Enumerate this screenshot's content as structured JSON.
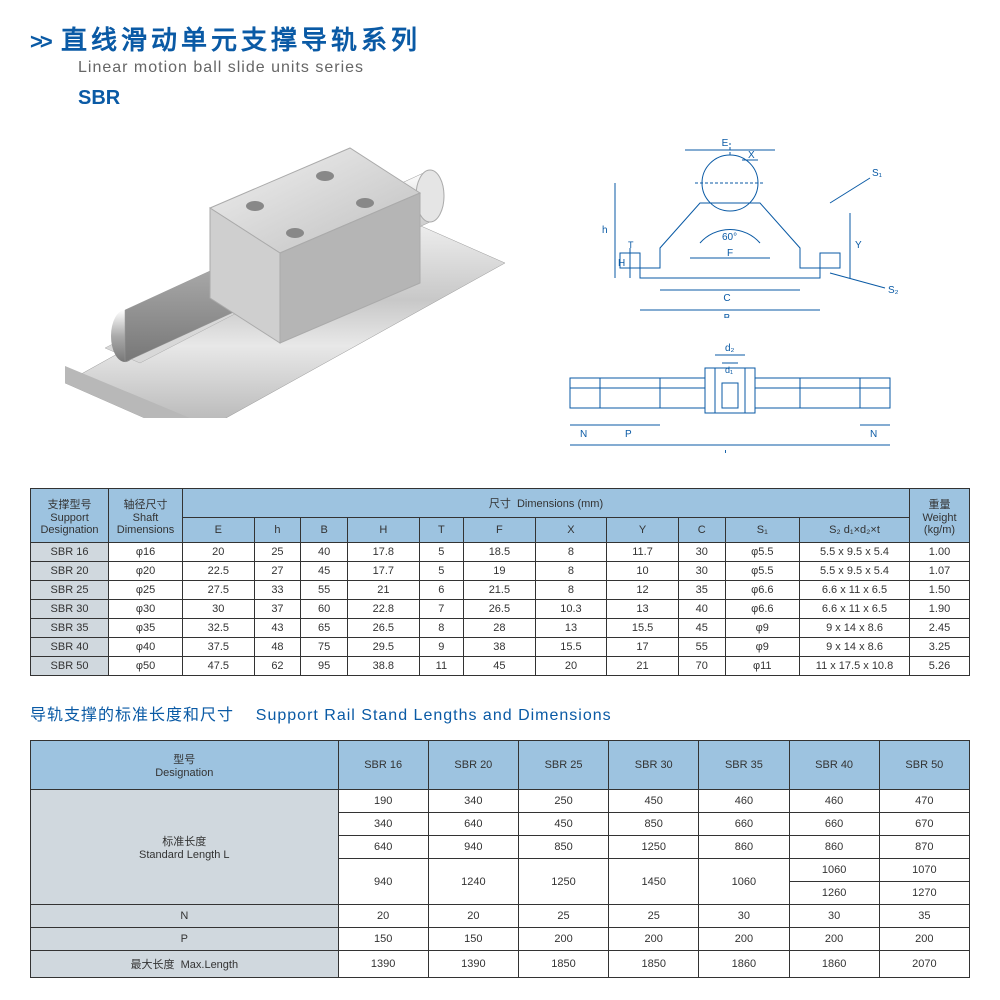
{
  "header": {
    "chevrons": ">>",
    "title_cn": "直线滑动单元支撑导轨系列",
    "title_en": "Linear motion ball slide units series",
    "series": "SBR"
  },
  "diagram1_labels": [
    "E",
    "X",
    "S₁",
    "h",
    "H",
    "T",
    "Y",
    "60°",
    "F",
    "C",
    "S₂",
    "B"
  ],
  "diagram2_labels": [
    "d₂",
    "d₁",
    "N",
    "P",
    "N",
    "L"
  ],
  "dim_table": {
    "headers": {
      "support_cn": "支撑型号",
      "support_en": "Support Designation",
      "shaft_cn": "轴径尺寸",
      "shaft_en": "Shaft Dimensions",
      "dims_cn": "尺寸",
      "dims_en": "Dimensions (mm)",
      "weight_cn": "重量",
      "weight_en": "Weight (kg/m)",
      "cols": [
        "E",
        "h",
        "B",
        "H",
        "T",
        "F",
        "X",
        "Y",
        "C",
        "S₁",
        "S₂ d₁×d₂×t"
      ]
    },
    "rows": [
      [
        "SBR 16",
        "φ16",
        "20",
        "25",
        "40",
        "17.8",
        "5",
        "18.5",
        "8",
        "11.7",
        "30",
        "φ5.5",
        "5.5 x 9.5 x 5.4",
        "1.00"
      ],
      [
        "SBR 20",
        "φ20",
        "22.5",
        "27",
        "45",
        "17.7",
        "5",
        "19",
        "8",
        "10",
        "30",
        "φ5.5",
        "5.5 x 9.5 x 5.4",
        "1.07"
      ],
      [
        "SBR 25",
        "φ25",
        "27.5",
        "33",
        "55",
        "21",
        "6",
        "21.5",
        "8",
        "12",
        "35",
        "φ6.6",
        "6.6 x 11 x 6.5",
        "1.50"
      ],
      [
        "SBR 30",
        "φ30",
        "30",
        "37",
        "60",
        "22.8",
        "7",
        "26.5",
        "10.3",
        "13",
        "40",
        "φ6.6",
        "6.6 x 11 x 6.5",
        "1.90"
      ],
      [
        "SBR 35",
        "φ35",
        "32.5",
        "43",
        "65",
        "26.5",
        "8",
        "28",
        "13",
        "15.5",
        "45",
        "φ9",
        "9 x 14 x 8.6",
        "2.45"
      ],
      [
        "SBR 40",
        "φ40",
        "37.5",
        "48",
        "75",
        "29.5",
        "9",
        "38",
        "15.5",
        "17",
        "55",
        "φ9",
        "9 x 14 x 8.6",
        "3.25"
      ],
      [
        "SBR 50",
        "φ50",
        "47.5",
        "62",
        "95",
        "38.8",
        "11",
        "45",
        "20",
        "21",
        "70",
        "φ11",
        "11 x 17.5 x 10.8",
        "5.26"
      ]
    ]
  },
  "section2_title_cn": "导轨支撑的标准长度和尺寸",
  "section2_title_en": "Support  Rail Stand Lengths and Dimensions",
  "len_table": {
    "headers": {
      "designation_cn": "型号",
      "designation_en": "Designation",
      "models": [
        "SBR 16",
        "SBR 20",
        "SBR 25",
        "SBR 30",
        "SBR 35",
        "SBR 40",
        "SBR 50"
      ],
      "stdlen_cn": "标准长度",
      "stdlen_en": "Standard Length  L",
      "N": "N",
      "P": "P",
      "maxlen_cn": "最大长度",
      "maxlen_en": "Max.Length"
    },
    "std_rows": [
      [
        "190",
        "340",
        "250",
        "450",
        "460"
      ],
      [
        "340",
        "640",
        "450",
        "850",
        "660"
      ],
      [
        "640",
        "940",
        "850",
        "1250",
        "860"
      ],
      [
        "940",
        "1240",
        "1250",
        "1450",
        "1060"
      ]
    ],
    "col6_vals": [
      "460",
      "660",
      "860",
      "1060",
      "1260"
    ],
    "col7_vals": [
      "470",
      "670",
      "870",
      "1070",
      "1270"
    ],
    "N_row": [
      "20",
      "20",
      "25",
      "25",
      "30",
      "30",
      "35"
    ],
    "P_row": [
      "150",
      "150",
      "200",
      "200",
      "200",
      "200",
      "200"
    ],
    "max_row": [
      "1390",
      "1390",
      "1850",
      "1850",
      "1860",
      "1860",
      "2070"
    ]
  },
  "colors": {
    "brand": "#0a5aa5",
    "th_bg": "#9dc3e0",
    "row_hdr_bg": "#d0d8de",
    "diagram_stroke": "#0a5aa5"
  }
}
